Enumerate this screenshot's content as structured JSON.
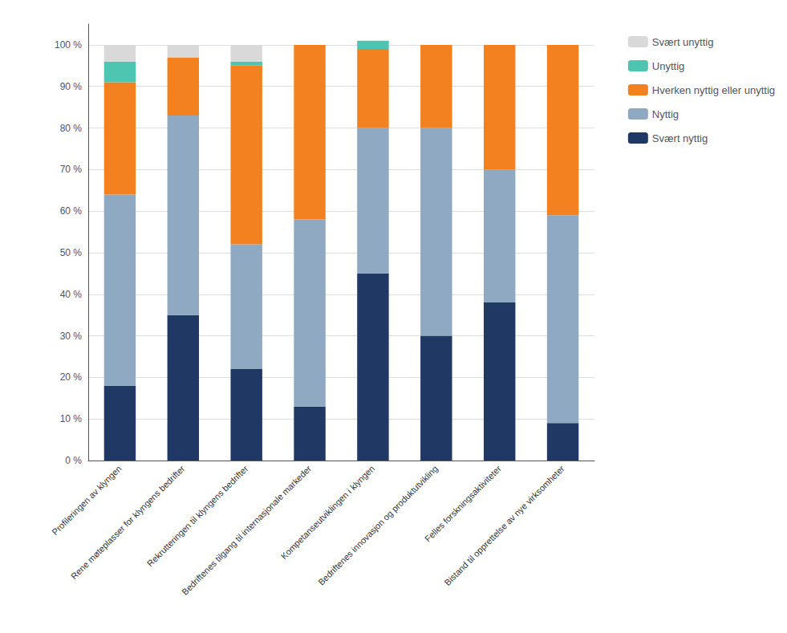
{
  "chart_data": {
    "type": "bar",
    "stacked": true,
    "orientation": "vertical",
    "categories": [
      "Profileringen av klyngen",
      "Rene møteplasser for klyngens bedrifter",
      "Rekrutteringen til klyngens bedrifter",
      "Bedriftenes tilgang til internasjonale markeder",
      "Kompetanseutviklingen i klyngen",
      "Bedriftenes innovasjon og produktutvikling",
      "Felles forskningsaktiviteter",
      "Bistand til opprettelse av nye virksomheter"
    ],
    "series": [
      {
        "name": "Svært nyttig",
        "color": "#1F3864",
        "values": [
          18,
          35,
          22,
          13,
          45,
          30,
          38,
          9
        ]
      },
      {
        "name": "Nyttig",
        "color": "#8EA9C1",
        "values": [
          46,
          48,
          30,
          45,
          35,
          50,
          32,
          50
        ]
      },
      {
        "name": "Hverken nyttig eller unyttig",
        "color": "#F4811F",
        "values": [
          27,
          14,
          43,
          42,
          19,
          20,
          30,
          41
        ]
      },
      {
        "name": "Unyttig",
        "color": "#4EC5B0",
        "values": [
          5,
          0,
          1,
          0,
          2,
          0,
          0,
          0
        ]
      },
      {
        "name": "Svært unyttig",
        "color": "#D9D9D9",
        "values": [
          4,
          3,
          4,
          0,
          0,
          0,
          0,
          0
        ]
      }
    ],
    "ylim": [
      0,
      105
    ],
    "yticks": [
      {
        "value": 0,
        "label": "0 %"
      },
      {
        "value": 10,
        "label": "10 %"
      },
      {
        "value": 20,
        "label": "20 %"
      },
      {
        "value": 30,
        "label": "30 %"
      },
      {
        "value": 40,
        "label": "40 %"
      },
      {
        "value": 50,
        "label": "50 %"
      },
      {
        "value": 60,
        "label": "60 %"
      },
      {
        "value": 70,
        "label": "70 %"
      },
      {
        "value": 80,
        "label": "80 %"
      },
      {
        "value": 90,
        "label": "90 %"
      },
      {
        "value": 100,
        "label": "100 %"
      }
    ],
    "grid": true,
    "legend": "right"
  }
}
